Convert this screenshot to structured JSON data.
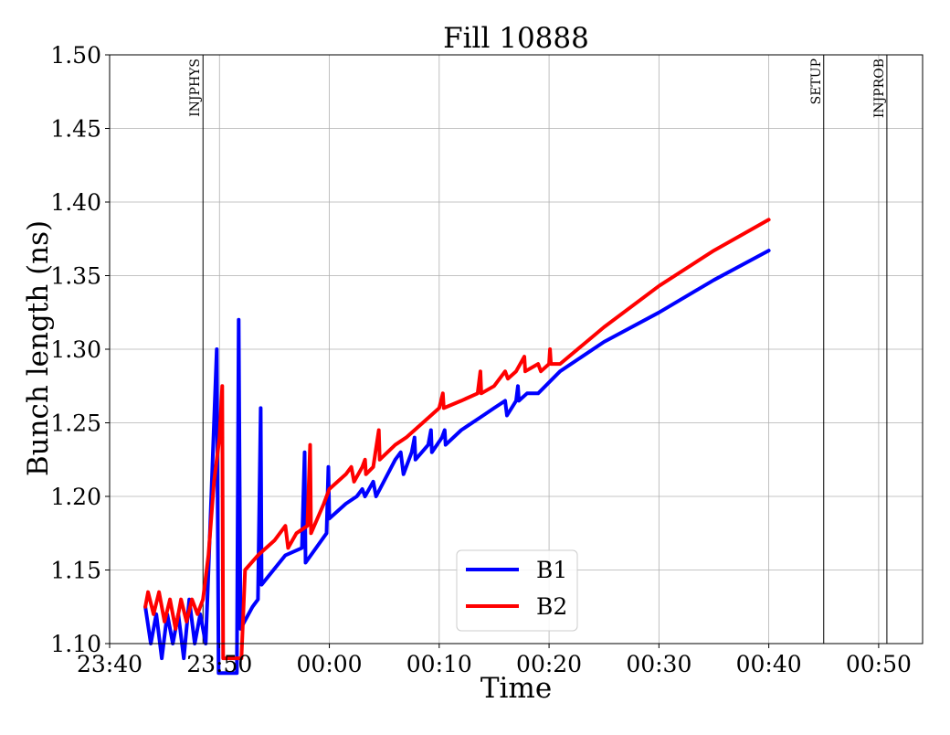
{
  "chart_data": {
    "type": "line",
    "title": "Fill 10888",
    "xlabel": "Time",
    "ylabel": "Bunch length (ns)",
    "xlim": [
      "23:40",
      "00:54"
    ],
    "ylim": [
      1.1,
      1.5
    ],
    "x_ticks": [
      "23:40",
      "23:50",
      "00:00",
      "00:10",
      "00:20",
      "00:30",
      "00:40",
      "00:50"
    ],
    "y_ticks": [
      "1.10",
      "1.15",
      "1.20",
      "1.25",
      "1.30",
      "1.35",
      "1.40",
      "1.45",
      "1.50"
    ],
    "grid": true,
    "legend": {
      "placement": "lower-center",
      "entries": [
        "B1",
        "B2"
      ]
    },
    "event_markers": [
      {
        "label": "INJPHYS",
        "time": "23:48:30"
      },
      {
        "label": "SETUP",
        "time": "00:45:00"
      },
      {
        "label": "INJPROB",
        "time": "00:50:45"
      }
    ],
    "series": [
      {
        "name": "B1",
        "color": "#0000ff",
        "points": [
          [
            "23:43:15",
            1.125
          ],
          [
            "23:43:45",
            1.1
          ],
          [
            "23:44:15",
            1.12
          ],
          [
            "23:44:45",
            1.09
          ],
          [
            "23:45:15",
            1.12
          ],
          [
            "23:45:45",
            1.1
          ],
          [
            "23:46:15",
            1.12
          ],
          [
            "23:46:45",
            1.09
          ],
          [
            "23:47:15",
            1.13
          ],
          [
            "23:47:45",
            1.1
          ],
          [
            "23:48:15",
            1.12
          ],
          [
            "23:48:45",
            1.1
          ],
          [
            "23:49:15",
            1.2
          ],
          [
            "23:49:45",
            1.3
          ],
          [
            "23:49:55",
            1.08
          ],
          [
            "23:51:35",
            1.08
          ],
          [
            "23:51:45",
            1.32
          ],
          [
            "23:51:55",
            1.11
          ],
          [
            "23:53:00",
            1.125
          ],
          [
            "23:53:30",
            1.13
          ],
          [
            "23:53:45",
            1.26
          ],
          [
            "23:53:50",
            1.14
          ],
          [
            "23:56:00",
            1.16
          ],
          [
            "23:57:30",
            1.165
          ],
          [
            "23:57:45",
            1.23
          ],
          [
            "23:57:50",
            1.155
          ],
          [
            "23:59:45",
            1.175
          ],
          [
            "23:59:55",
            1.22
          ],
          [
            "24:00:00",
            1.185
          ],
          [
            "24:01:30",
            1.195
          ],
          [
            "24:02:30",
            1.2
          ],
          [
            "24:03:00",
            1.205
          ],
          [
            "24:03:15",
            1.2
          ],
          [
            "24:04:00",
            1.21
          ],
          [
            "24:04:15",
            1.2
          ],
          [
            "24:06:00",
            1.225
          ],
          [
            "24:06:30",
            1.23
          ],
          [
            "24:06:45",
            1.215
          ],
          [
            "24:07:30",
            1.23
          ],
          [
            "24:07:45",
            1.24
          ],
          [
            "24:07:50",
            1.225
          ],
          [
            "24:09:00",
            1.235
          ],
          [
            "24:09:15",
            1.245
          ],
          [
            "24:09:20",
            1.23
          ],
          [
            "24:10:15",
            1.24
          ],
          [
            "24:10:30",
            1.245
          ],
          [
            "24:10:35",
            1.235
          ],
          [
            "24:12:00",
            1.245
          ],
          [
            "24:14:00",
            1.255
          ],
          [
            "24:15:00",
            1.26
          ],
          [
            "24:16:00",
            1.265
          ],
          [
            "24:16:10",
            1.255
          ],
          [
            "24:17:00",
            1.265
          ],
          [
            "24:17:10",
            1.275
          ],
          [
            "24:17:15",
            1.265
          ],
          [
            "24:18:00",
            1.27
          ],
          [
            "24:19:00",
            1.27
          ],
          [
            "24:21:00",
            1.285
          ],
          [
            "24:25:00",
            1.305
          ],
          [
            "24:30:00",
            1.325
          ],
          [
            "24:35:00",
            1.347
          ],
          [
            "24:40:00",
            1.367
          ]
        ]
      },
      {
        "name": "B2",
        "color": "#ff0000",
        "points": [
          [
            "23:43:15",
            1.125
          ],
          [
            "23:43:30",
            1.135
          ],
          [
            "23:44:00",
            1.12
          ],
          [
            "23:44:30",
            1.135
          ],
          [
            "23:45:00",
            1.115
          ],
          [
            "23:45:30",
            1.13
          ],
          [
            "23:46:00",
            1.11
          ],
          [
            "23:46:30",
            1.13
          ],
          [
            "23:47:00",
            1.115
          ],
          [
            "23:47:30",
            1.13
          ],
          [
            "23:48:00",
            1.12
          ],
          [
            "23:48:30",
            1.13
          ],
          [
            "23:49:00",
            1.16
          ],
          [
            "23:49:30",
            1.21
          ],
          [
            "23:50:00",
            1.24
          ],
          [
            "23:50:15",
            1.275
          ],
          [
            "23:50:20",
            1.09
          ],
          [
            "23:52:00",
            1.09
          ],
          [
            "23:52:20",
            1.15
          ],
          [
            "23:53:30",
            1.16
          ],
          [
            "23:55:00",
            1.17
          ],
          [
            "23:56:00",
            1.18
          ],
          [
            "23:56:15",
            1.165
          ],
          [
            "23:57:00",
            1.175
          ],
          [
            "23:58:00",
            1.18
          ],
          [
            "23:58:15",
            1.235
          ],
          [
            "23:58:20",
            1.175
          ],
          [
            "23:59:30",
            1.195
          ],
          [
            "24:00:00",
            1.205
          ],
          [
            "24:01:30",
            1.215
          ],
          [
            "24:02:00",
            1.22
          ],
          [
            "24:02:15",
            1.21
          ],
          [
            "24:03:00",
            1.22
          ],
          [
            "24:03:15",
            1.225
          ],
          [
            "24:03:20",
            1.215
          ],
          [
            "24:04:00",
            1.22
          ],
          [
            "24:04:30",
            1.245
          ],
          [
            "24:04:35",
            1.225
          ],
          [
            "24:06:00",
            1.235
          ],
          [
            "24:07:00",
            1.24
          ],
          [
            "24:08:30",
            1.25
          ],
          [
            "24:10:00",
            1.26
          ],
          [
            "24:10:20",
            1.27
          ],
          [
            "24:10:25",
            1.26
          ],
          [
            "24:12:00",
            1.265
          ],
          [
            "24:13:30",
            1.27
          ],
          [
            "24:13:45",
            1.285
          ],
          [
            "24:13:50",
            1.27
          ],
          [
            "24:15:00",
            1.275
          ],
          [
            "24:16:00",
            1.285
          ],
          [
            "24:16:15",
            1.28
          ],
          [
            "24:17:00",
            1.285
          ],
          [
            "24:17:45",
            1.295
          ],
          [
            "24:17:50",
            1.285
          ],
          [
            "24:19:00",
            1.29
          ],
          [
            "24:19:15",
            1.285
          ],
          [
            "24:20:00",
            1.29
          ],
          [
            "24:20:05",
            1.3
          ],
          [
            "24:20:10",
            1.29
          ],
          [
            "24:21:00",
            1.29
          ],
          [
            "24:25:00",
            1.315
          ],
          [
            "24:30:00",
            1.343
          ],
          [
            "24:35:00",
            1.367
          ],
          [
            "24:40:00",
            1.388
          ]
        ]
      }
    ]
  }
}
